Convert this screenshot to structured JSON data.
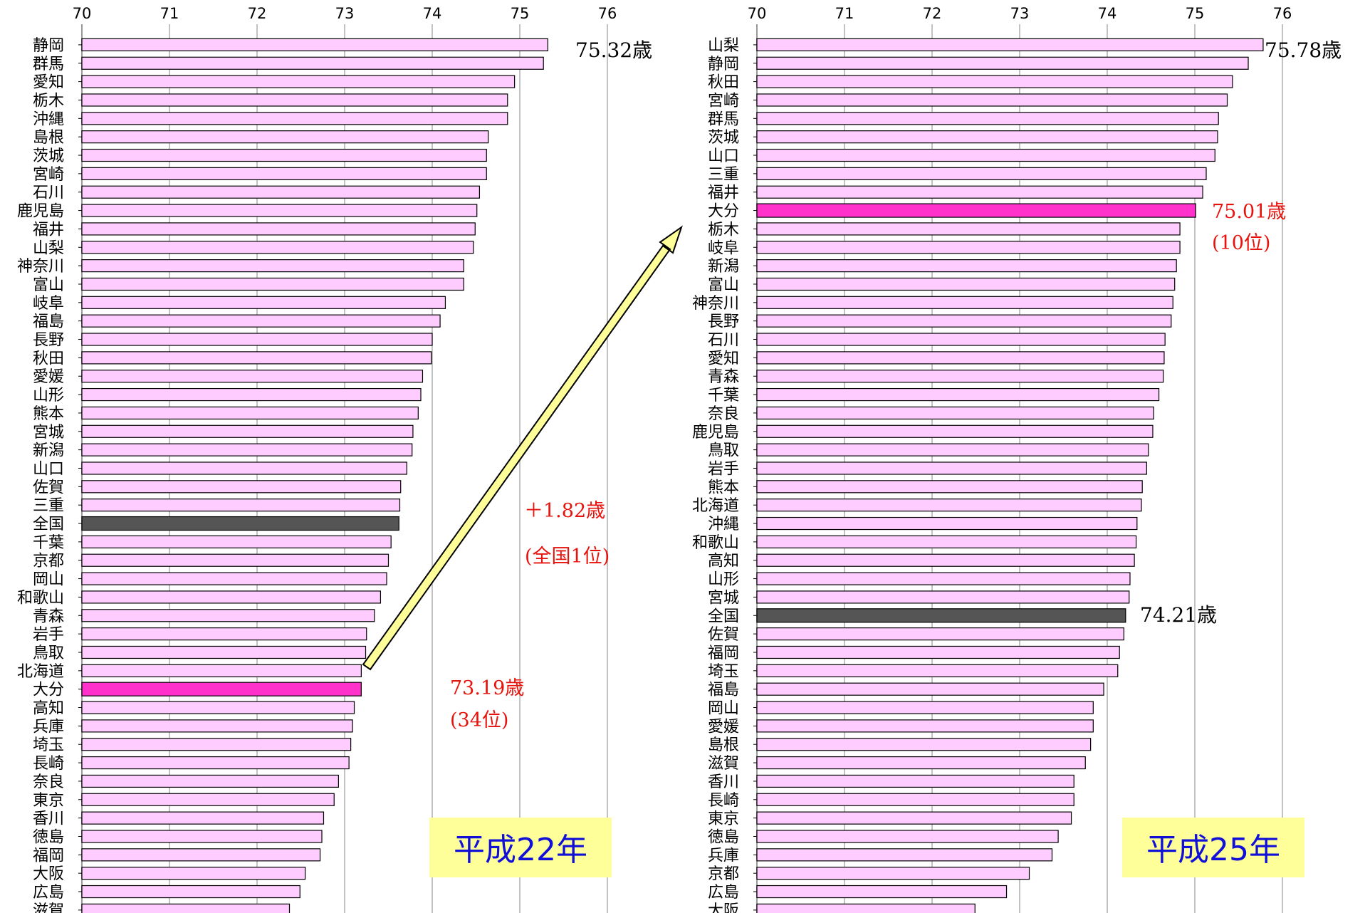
{
  "chart_data": [
    {
      "type": "bar",
      "orientation": "horizontal",
      "year_label": "平成22年",
      "xlim": [
        70,
        76
      ],
      "ticks": [
        "70",
        "71",
        "72",
        "73",
        "74",
        "75",
        "76"
      ],
      "grid": true,
      "categories": [
        "静岡",
        "群馬",
        "愛知",
        "栃木",
        "沖縄",
        "島根",
        "茨城",
        "宮崎",
        "石川",
        "鹿児島",
        "福井",
        "山梨",
        "神奈川",
        "富山",
        "岐阜",
        "福島",
        "長野",
        "秋田",
        "愛媛",
        "山形",
        "熊本",
        "宮城",
        "新潟",
        "山口",
        "佐賀",
        "三重",
        "全国",
        "千葉",
        "京都",
        "岡山",
        "和歌山",
        "青森",
        "岩手",
        "鳥取",
        "北海道",
        "大分",
        "高知",
        "兵庫",
        "埼玉",
        "長崎",
        "奈良",
        "東京",
        "香川",
        "徳島",
        "福岡",
        "大阪",
        "広島",
        "滋賀"
      ],
      "values": [
        75.32,
        75.27,
        74.94,
        74.86,
        74.86,
        74.64,
        74.62,
        74.62,
        74.54,
        74.51,
        74.49,
        74.47,
        74.36,
        74.36,
        74.15,
        74.09,
        74.0,
        73.99,
        73.89,
        73.87,
        73.84,
        73.78,
        73.77,
        73.71,
        73.64,
        73.63,
        73.62,
        73.53,
        73.5,
        73.48,
        73.41,
        73.34,
        73.25,
        73.24,
        73.19,
        73.19,
        73.11,
        73.09,
        73.07,
        73.05,
        72.93,
        72.88,
        72.76,
        72.74,
        72.72,
        72.55,
        72.49,
        72.37
      ],
      "highlight": "大分",
      "national": "全国",
      "annotations": {
        "top_value": "75.32歳",
        "oita_value": "73.19歳",
        "oita_rank": "(34位)",
        "change": "＋1.82歳",
        "change_rank": "(全国1位)"
      }
    },
    {
      "type": "bar",
      "orientation": "horizontal",
      "year_label": "平成25年",
      "xlim": [
        70,
        76
      ],
      "ticks": [
        "70",
        "71",
        "72",
        "73",
        "74",
        "75",
        "76"
      ],
      "grid": true,
      "categories": [
        "山梨",
        "静岡",
        "秋田",
        "宮崎",
        "群馬",
        "茨城",
        "山口",
        "三重",
        "福井",
        "大分",
        "栃木",
        "岐阜",
        "新潟",
        "富山",
        "神奈川",
        "長野",
        "石川",
        "愛知",
        "青森",
        "千葉",
        "奈良",
        "鹿児島",
        "鳥取",
        "岩手",
        "熊本",
        "北海道",
        "沖縄",
        "和歌山",
        "高知",
        "山形",
        "宮城",
        "全国",
        "佐賀",
        "福岡",
        "埼玉",
        "福島",
        "岡山",
        "愛媛",
        "島根",
        "滋賀",
        "香川",
        "長崎",
        "東京",
        "徳島",
        "兵庫",
        "京都",
        "広島",
        "大阪"
      ],
      "values": [
        75.78,
        75.61,
        75.43,
        75.37,
        75.27,
        75.26,
        75.23,
        75.13,
        75.09,
        75.01,
        74.83,
        74.83,
        74.79,
        74.77,
        74.75,
        74.73,
        74.66,
        74.65,
        74.64,
        74.59,
        74.53,
        74.52,
        74.47,
        74.45,
        74.4,
        74.39,
        74.34,
        74.33,
        74.31,
        74.26,
        74.25,
        74.21,
        74.19,
        74.14,
        74.12,
        73.96,
        73.84,
        73.84,
        73.81,
        73.75,
        73.62,
        73.62,
        73.59,
        73.44,
        73.37,
        73.11,
        72.85,
        72.49
      ],
      "highlight": "大分",
      "national": "全国",
      "annotations": {
        "top_value": "75.78歳",
        "oita_value": "75.01歳",
        "oita_rank": "(10位)",
        "national_value": "74.21歳"
      }
    }
  ],
  "colors": {
    "bar_fill": "#ffccff",
    "bar_stroke": "#000000",
    "highlight_fill": "#ff33cc",
    "national_fill": "#555555",
    "grid": "#999999",
    "year_label_bg": "#ffff99",
    "year_label_text": "#1010d8",
    "annotation_red": "#e8120c",
    "arrow_fill": "#ffff99"
  }
}
